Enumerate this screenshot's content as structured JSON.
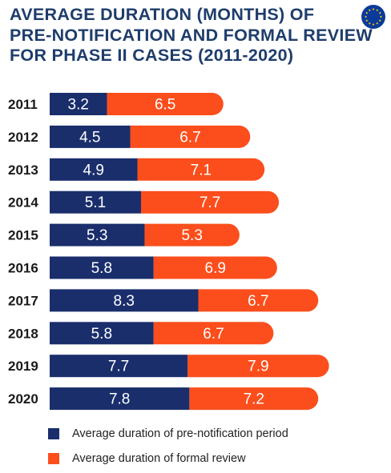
{
  "header": {
    "title_lines": [
      "AVERAGE DURATION (MONTHS) OF",
      "PRE-NOTIFICATION AND FORMAL REVIEW",
      "FOR PHASE II CASES (2011-2020)"
    ]
  },
  "logo": {
    "icon": "eu-flag-icon",
    "background": "#0a3a9a",
    "stars": "#ffd800"
  },
  "colors": {
    "pre_notification": "#1a2e6c",
    "formal_review": "#fb4e1c",
    "title": "#1e3d6b"
  },
  "chart_data": {
    "type": "bar",
    "orientation": "horizontal",
    "stacked": true,
    "title": "AVERAGE DURATION (MONTHS) OF PRE-NOTIFICATION AND FORMAL REVIEW FOR PHASE II CASES (2011-2020)",
    "categories": [
      "2011",
      "2012",
      "2013",
      "2014",
      "2015",
      "2016",
      "2017",
      "2018",
      "2019",
      "2020"
    ],
    "series": [
      {
        "name": "Average duration of pre-notification period",
        "color": "#1a2e6c",
        "values": [
          3.2,
          4.5,
          4.9,
          5.1,
          5.3,
          5.8,
          8.3,
          5.8,
          7.7,
          7.8
        ]
      },
      {
        "name": "Average duration of formal review",
        "color": "#fb4e1c",
        "values": [
          6.5,
          6.7,
          7.1,
          7.7,
          5.3,
          6.9,
          6.7,
          6.7,
          7.9,
          7.2
        ]
      }
    ],
    "data_labels": true,
    "grid": false,
    "legend_position": "bottom-left"
  },
  "legend": {
    "items": [
      {
        "label": "Average duration of pre-notification period",
        "color": "#1a2e6c"
      },
      {
        "label": "Average duration of formal review",
        "color": "#fb4e1c"
      }
    ]
  }
}
